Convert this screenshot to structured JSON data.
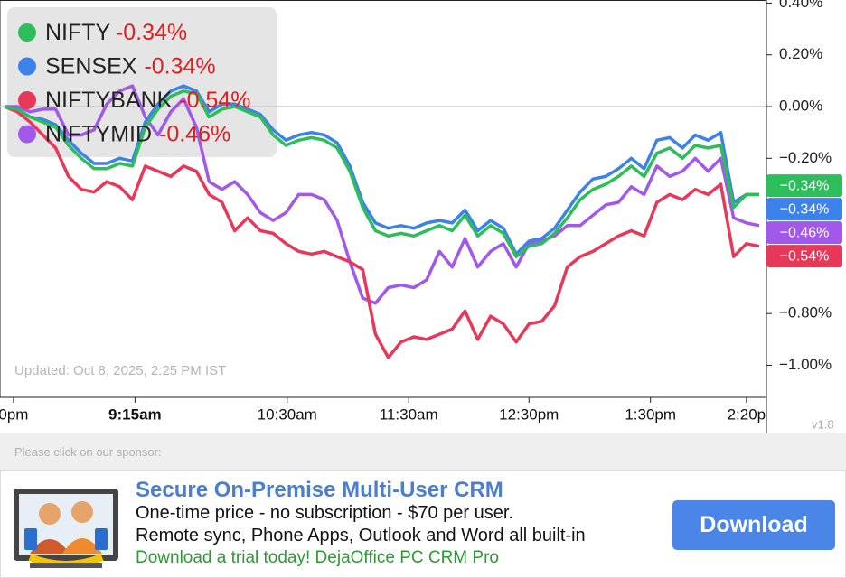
{
  "chart_data": {
    "type": "line",
    "x": [
      0,
      1,
      2,
      3,
      4,
      5,
      6,
      7,
      8,
      9,
      10,
      11,
      12,
      13,
      14,
      15,
      16,
      17,
      18,
      19,
      20,
      21,
      22,
      23,
      24,
      25,
      26,
      27,
      28,
      29,
      30,
      31,
      32,
      33,
      34,
      35,
      36,
      37,
      38,
      39,
      40,
      41,
      42,
      43,
      44,
      45,
      46,
      47,
      48,
      49,
      50,
      51,
      52,
      53,
      54,
      55,
      56,
      57,
      58,
      59
    ],
    "xlim": [
      0,
      59
    ],
    "xticks": [
      {
        "value": 0.7,
        "label": "0pm"
      },
      {
        "value": 10.2,
        "label": "9:15am"
      },
      {
        "value": 22.1,
        "label": "10:30am"
      },
      {
        "value": 31.6,
        "label": "11:30am"
      },
      {
        "value": 41.0,
        "label": "12:30pm"
      },
      {
        "value": 50.5,
        "label": "1:30pm"
      },
      {
        "value": 58.0,
        "label": "2:20p"
      }
    ],
    "ylim": [
      -1.124,
      0.412
    ],
    "yticks": [
      {
        "value": 0.4,
        "label": "0.40%"
      },
      {
        "value": 0.2,
        "label": "0.20%"
      },
      {
        "value": 0,
        "label": "0.00%"
      },
      {
        "value": -0.2,
        "label": "−0.20%"
      },
      {
        "value": -0.4,
        "label": "−0.40%"
      },
      {
        "value": -0.6,
        "label": "−0.60%"
      },
      {
        "value": -0.8,
        "label": "−0.80%"
      },
      {
        "value": -1.0,
        "label": "−1.00%"
      }
    ],
    "series": [
      {
        "name": "NIFTY",
        "change": "-0.34%",
        "tag": "−0.34%",
        "color": "#2dbd5a",
        "values": [
          0,
          -0.01,
          -0.04,
          -0.06,
          -0.08,
          -0.15,
          -0.2,
          -0.24,
          -0.24,
          -0.22,
          -0.23,
          -0.08,
          -0.01,
          0.04,
          0.06,
          0.05,
          -0.04,
          -0.01,
          0,
          -0.02,
          -0.04,
          -0.11,
          -0.15,
          -0.13,
          -0.12,
          -0.13,
          -0.16,
          -0.25,
          -0.39,
          -0.48,
          -0.5,
          -0.49,
          -0.5,
          -0.48,
          -0.46,
          -0.48,
          -0.42,
          -0.5,
          -0.46,
          -0.49,
          -0.58,
          -0.54,
          -0.53,
          -0.49,
          -0.43,
          -0.36,
          -0.32,
          -0.3,
          -0.27,
          -0.23,
          -0.27,
          -0.18,
          -0.16,
          -0.2,
          -0.15,
          -0.16,
          -0.15,
          -0.39,
          -0.34,
          -0.34
        ]
      },
      {
        "name": "SENSEX",
        "change": "-0.34%",
        "tag": "−0.34%",
        "color": "#3d82ea",
        "values": [
          0,
          -0.01,
          -0.04,
          -0.05,
          -0.07,
          -0.13,
          -0.18,
          -0.22,
          -0.22,
          -0.2,
          -0.21,
          -0.06,
          0.01,
          0.06,
          0.08,
          0.06,
          -0.02,
          0.01,
          0.01,
          -0.01,
          -0.03,
          -0.09,
          -0.13,
          -0.11,
          -0.1,
          -0.11,
          -0.14,
          -0.23,
          -0.37,
          -0.45,
          -0.47,
          -0.46,
          -0.47,
          -0.45,
          -0.44,
          -0.45,
          -0.4,
          -0.48,
          -0.44,
          -0.47,
          -0.57,
          -0.52,
          -0.51,
          -0.47,
          -0.4,
          -0.33,
          -0.28,
          -0.27,
          -0.24,
          -0.2,
          -0.24,
          -0.13,
          -0.12,
          -0.16,
          -0.11,
          -0.13,
          -0.1,
          -0.37,
          -0.34,
          -0.34
        ]
      },
      {
        "name": "NIFTYBANK",
        "change": "-0.54%",
        "tag": "−0.54%",
        "color": "#e8385a",
        "values": [
          0,
          -0.02,
          -0.06,
          -0.11,
          -0.16,
          -0.27,
          -0.32,
          -0.33,
          -0.29,
          -0.31,
          -0.36,
          -0.23,
          -0.25,
          -0.27,
          -0.23,
          -0.25,
          -0.34,
          -0.37,
          -0.48,
          -0.43,
          -0.48,
          -0.49,
          -0.53,
          -0.56,
          -0.57,
          -0.56,
          -0.58,
          -0.6,
          -0.63,
          -0.88,
          -0.97,
          -0.91,
          -0.89,
          -0.9,
          -0.88,
          -0.86,
          -0.79,
          -0.9,
          -0.81,
          -0.84,
          -0.91,
          -0.84,
          -0.83,
          -0.77,
          -0.62,
          -0.58,
          -0.56,
          -0.53,
          -0.5,
          -0.48,
          -0.5,
          -0.37,
          -0.34,
          -0.36,
          -0.32,
          -0.34,
          -0.3,
          -0.58,
          -0.53,
          -0.54
        ]
      },
      {
        "name": "NIFTYMID",
        "change": "-0.46%",
        "tag": "−0.46%",
        "color": "#a259ea",
        "values": [
          0,
          0,
          -0.02,
          -0.01,
          -0.01,
          -0.11,
          -0.11,
          -0.09,
          0.01,
          0.06,
          0.08,
          -0.04,
          -0.11,
          -0.02,
          0.03,
          -0.08,
          -0.29,
          -0.32,
          -0.29,
          -0.34,
          -0.41,
          -0.44,
          -0.41,
          -0.34,
          -0.34,
          -0.36,
          -0.44,
          -0.6,
          -0.74,
          -0.76,
          -0.7,
          -0.69,
          -0.7,
          -0.67,
          -0.56,
          -0.62,
          -0.51,
          -0.62,
          -0.56,
          -0.53,
          -0.62,
          -0.53,
          -0.52,
          -0.5,
          -0.46,
          -0.46,
          -0.42,
          -0.38,
          -0.37,
          -0.31,
          -0.34,
          -0.23,
          -0.27,
          -0.25,
          -0.2,
          -0.25,
          -0.2,
          -0.43,
          -0.45,
          -0.46
        ]
      }
    ],
    "bold_xtick": 1,
    "legend": "top-left"
  },
  "updated": "Updated: Oct 8, 2025, 2:25 PM IST",
  "version": "v1.8",
  "sponsor": {
    "prompt": "Please click on our sponsor:",
    "title": "Secure On-Premise Multi-User CRM",
    "lines": [
      "One-time price - no subscription - $70 per user.",
      "Remote sync, Phone Apps, Outlook and Word all built-in"
    ],
    "cta": "Download a trial today! DejaOffice PC CRM Pro",
    "button": "Download"
  }
}
